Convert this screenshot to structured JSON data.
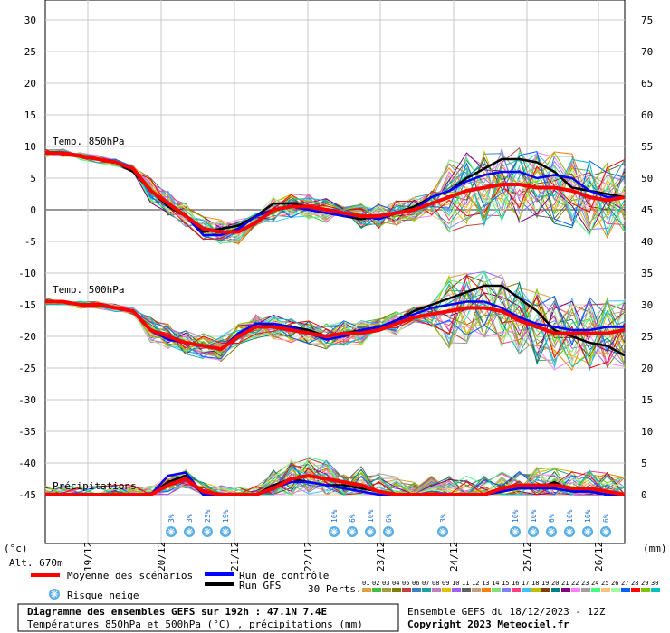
{
  "left_axis_ticks": [
    "30",
    "25",
    "20",
    "15",
    "10",
    "5",
    "0",
    "-5",
    "-10",
    "-15",
    "-20",
    "-25",
    "-30",
    "-35",
    "-40",
    "-45"
  ],
  "right_axis_ticks": [
    "75",
    "70",
    "65",
    "60",
    "55",
    "50",
    "45",
    "40",
    "35",
    "30",
    "25",
    "20",
    "15",
    "10",
    "5",
    "0"
  ],
  "left_unit": "(°c)",
  "right_unit": "(mm)",
  "altitude": "Alt. 670m",
  "panel_labels": {
    "t850": "Temp. 850hPa",
    "t500": "Temp. 500hPa",
    "precip": "Précipitations"
  },
  "dates": [
    "19/12",
    "20/12",
    "21/12",
    "22/12",
    "23/12",
    "24/12",
    "25/12",
    "26/12"
  ],
  "snow_risks": [
    "3%",
    "3%",
    "23%",
    "19%",
    "10%",
    "6%",
    "10%",
    "6%",
    "3%",
    "10%",
    "10%",
    "6%",
    "10%",
    "10%",
    "6%"
  ],
  "legend": {
    "mean": "Moyenne des scénarios",
    "control": "Run de contrôle",
    "gfs": "Run GFS",
    "snow": "Risque neige",
    "perts": "30 Perts.",
    "perts_numbers": [
      "01",
      "02",
      "03",
      "04",
      "05",
      "06",
      "07",
      "08",
      "09",
      "10",
      "11",
      "12",
      "13",
      "14",
      "15",
      "16",
      "17",
      "18",
      "19",
      "20",
      "21",
      "22",
      "23",
      "24",
      "25",
      "26",
      "27",
      "28",
      "29",
      "30"
    ],
    "perts_colors": [
      "#e0a040",
      "#40c040",
      "#a0a040",
      "#808000",
      "#c04040",
      "#4080c0",
      "#20a0a0",
      "#c080c0",
      "#e0c000",
      "#a060ff",
      "#606060",
      "#c0a080",
      "#ff8000",
      "#80e080",
      "#8080ff",
      "#ff4080",
      "#40c0ff",
      "#c0c000",
      "#804000",
      "#008080",
      "#800080",
      "#ff80ff",
      "#a0a0a0",
      "#40ff80",
      "#ffc080",
      "#a0ffa0",
      "#0060ff",
      "#ff0000",
      "#80c000",
      "#00c0c0"
    ]
  },
  "footer": {
    "title": "Diagramme des ensembles GEFS sur 192h : 47.1N 7.4E",
    "subtitle": "Températures 850hPa et 500hPa (°C) , précipitations (mm)",
    "ensemble": "Ensemble GEFS du 18/12/2023 - 12Z",
    "copyright": "Copyright 2023 Meteociel.fr"
  },
  "colors": {
    "mean": "#ff0000",
    "control": "#0000ff",
    "gfs": "#000000",
    "grid": "#999999",
    "snow": "#5aaee8"
  },
  "chart_data": {
    "type": "line",
    "x_step_hours": 6,
    "x_dates": [
      "19/12",
      "20/12",
      "21/12",
      "22/12",
      "23/12",
      "24/12",
      "25/12",
      "26/12"
    ],
    "t850": {
      "ylabel": "(°c)",
      "mean": [
        9,
        9,
        8.5,
        8,
        7.5,
        6.5,
        3,
        1,
        -1,
        -3,
        -3.5,
        -3.5,
        -2,
        0,
        0.5,
        0.5,
        0,
        -0.5,
        -1,
        -1,
        -0.5,
        0,
        1,
        2,
        3,
        3.5,
        4,
        4,
        3.5,
        3.5,
        3,
        2,
        1.5,
        2
      ],
      "control": [
        9,
        9,
        8.5,
        8,
        7.5,
        6.5,
        3,
        1,
        -1,
        -4,
        -4,
        -3,
        -1,
        0,
        0.5,
        0,
        -0.5,
        -1,
        -1,
        -1.5,
        -0.5,
        0,
        2,
        3,
        4.5,
        5.5,
        6,
        6,
        5,
        5.5,
        5,
        3,
        2,
        2
      ],
      "gfs": [
        9,
        9,
        8.5,
        8,
        7.5,
        6,
        3,
        0.5,
        -1,
        -3.5,
        -3,
        -2.5,
        -1,
        1,
        1,
        0.5,
        0,
        -1,
        -1.5,
        -1,
        -0.5,
        0.5,
        2,
        3,
        5,
        6.5,
        8,
        8,
        7.5,
        6,
        3.5,
        3,
        2.5,
        2
      ]
    },
    "t500": {
      "mean": [
        -14.5,
        -14.5,
        -15,
        -15,
        -15.5,
        -16,
        -19,
        -20,
        -21,
        -21.5,
        -22,
        -20,
        -18.5,
        -18.5,
        -19,
        -19.5,
        -20,
        -19.5,
        -19.5,
        -19,
        -18,
        -17,
        -16.5,
        -16,
        -15.5,
        -15.5,
        -16,
        -17.5,
        -18.5,
        -19.5,
        -19.5,
        -19.5,
        -19.5,
        -19
      ],
      "control": [
        -14.5,
        -14.5,
        -15,
        -15,
        -15.5,
        -16,
        -19,
        -20.5,
        -21,
        -21.5,
        -22,
        -19.5,
        -18,
        -18,
        -18.5,
        -19.5,
        -20.5,
        -20,
        -19,
        -18.5,
        -17.5,
        -16.5,
        -15.5,
        -15,
        -14.5,
        -14.5,
        -15.5,
        -17,
        -18,
        -18.5,
        -19,
        -19,
        -18.5,
        -18.5
      ],
      "gfs": [
        -14.5,
        -14.5,
        -15,
        -15,
        -15.5,
        -16,
        -19,
        -20,
        -21,
        -21.5,
        -22,
        -19.5,
        -18.5,
        -18,
        -18.5,
        -19,
        -20,
        -19.5,
        -19,
        -18.5,
        -17.5,
        -16,
        -15,
        -14,
        -13,
        -12,
        -12,
        -14,
        -16,
        -19,
        -20,
        -21,
        -21.5,
        -23
      ]
    },
    "precip": {
      "ylabel": "(mm)",
      "mean": [
        0,
        0,
        0,
        0,
        0,
        0,
        0,
        1.5,
        2.5,
        0.5,
        0,
        0,
        0,
        1,
        2.5,
        3,
        2.5,
        2,
        1.5,
        0.5,
        0,
        0,
        0,
        0,
        0,
        0,
        1,
        1.5,
        1.5,
        1.5,
        1,
        1,
        0.5,
        0
      ],
      "control": [
        0,
        0,
        0,
        0,
        0,
        0,
        0,
        3,
        3.5,
        0,
        0,
        0,
        0,
        1,
        2,
        2,
        1.5,
        1,
        0.5,
        0,
        0,
        0,
        0,
        0,
        0,
        0,
        0.5,
        1,
        1,
        1,
        0.5,
        0.5,
        0,
        0
      ],
      "gfs": [
        0,
        0,
        0,
        0,
        0,
        0,
        0,
        2,
        3,
        0,
        0,
        0,
        0,
        1.5,
        2.5,
        2,
        1.5,
        1.5,
        1,
        0.5,
        0,
        0,
        0,
        0,
        0,
        0,
        0.5,
        1,
        1,
        2,
        0.5,
        0.5,
        0,
        0
      ]
    },
    "left_ylim": [
      -45,
      30
    ],
    "right_ylim": [
      0,
      75
    ]
  }
}
